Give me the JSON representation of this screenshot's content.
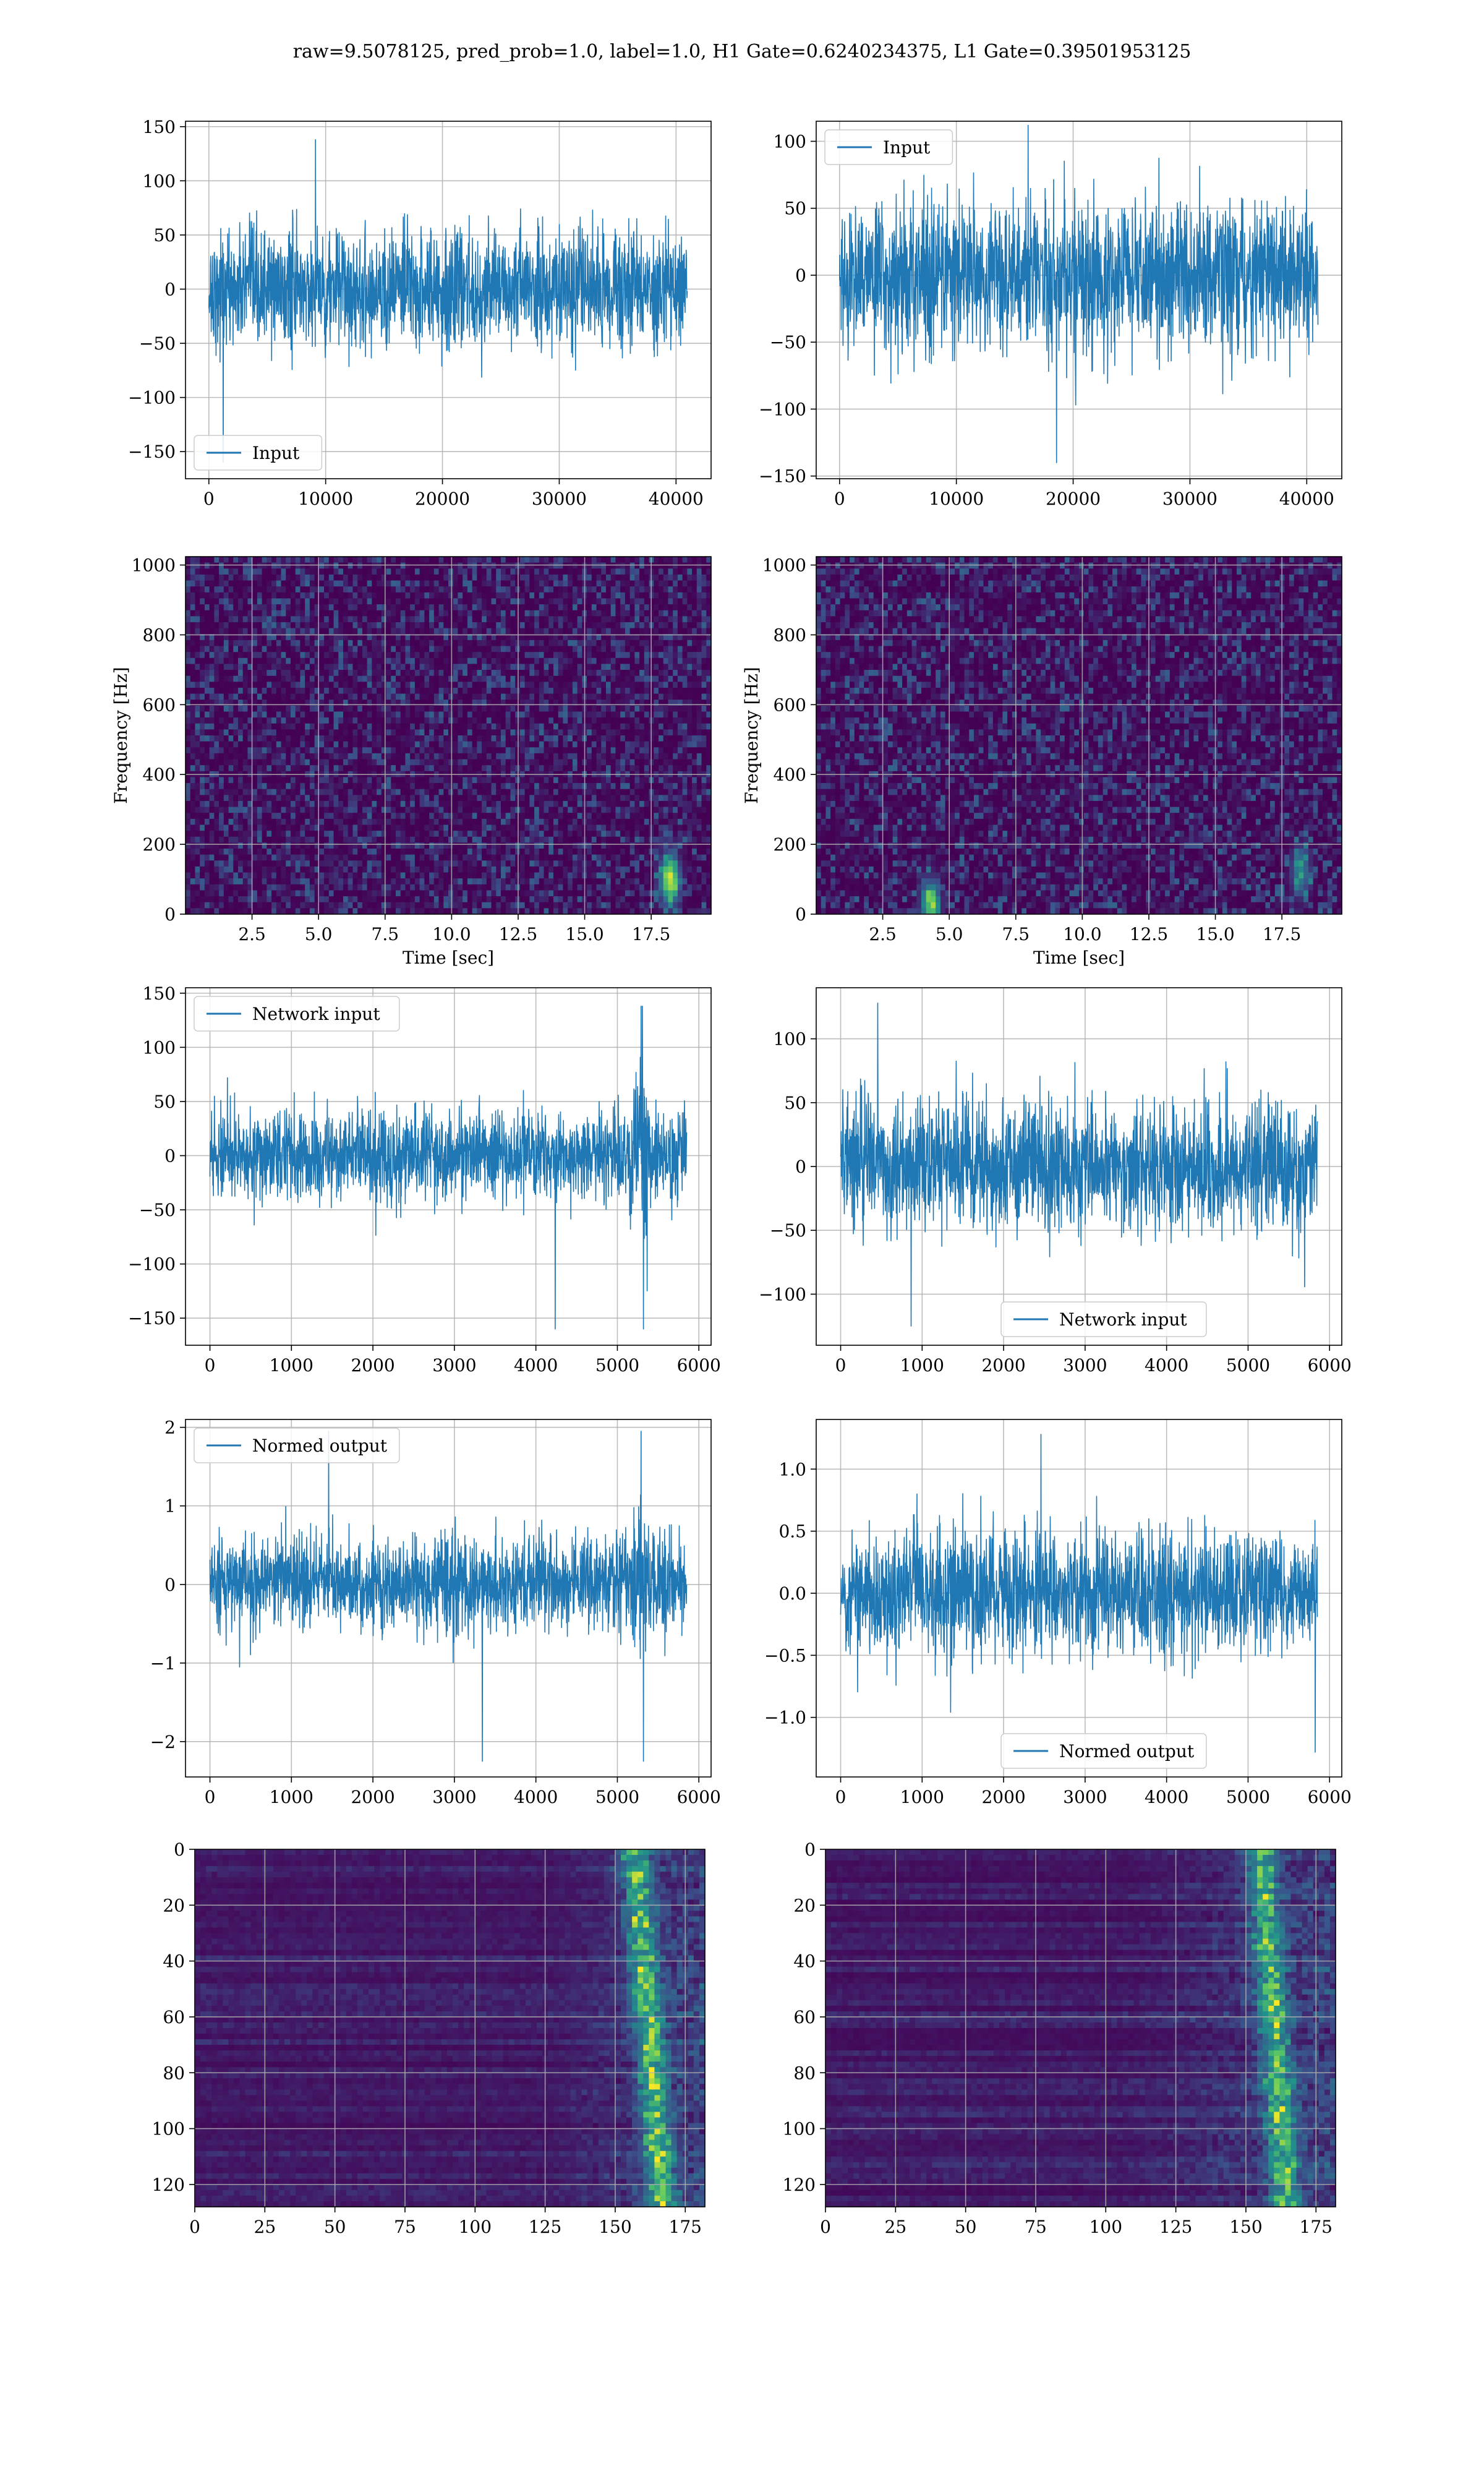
{
  "figure": {
    "suptitle": "raw=9.5078125, pred_prob=1.0, label=1.0, H1 Gate=0.6240234375, L1 Gate=0.39501953125"
  },
  "colors": {
    "line": "#1f77b4",
    "grid": "#b0b0b0",
    "viridis_low": "#440154",
    "viridis_mid": "#21918c",
    "viridis_high": "#fde725"
  },
  "chart_data": [
    {
      "id": "ts-input-left",
      "type": "line",
      "xlim": [
        -2000,
        43000
      ],
      "ylim": [
        -175,
        155
      ],
      "xticks": [
        0,
        10000,
        20000,
        30000,
        40000
      ],
      "yticks": [
        -150,
        -100,
        -50,
        0,
        50,
        100,
        150
      ],
      "series": [
        {
          "name": "Input",
          "x_range": [
            0,
            40960
          ],
          "amplitude_typical": 60,
          "min": -160,
          "max": 138
        }
      ],
      "legend": "lower-left",
      "grid": true,
      "xlabel": "",
      "ylabel": ""
    },
    {
      "id": "ts-input-right",
      "type": "line",
      "xlim": [
        -2000,
        43000
      ],
      "ylim": [
        -152,
        115
      ],
      "xticks": [
        0,
        10000,
        20000,
        30000,
        40000
      ],
      "yticks": [
        -150,
        -100,
        -50,
        0,
        50,
        100
      ],
      "series": [
        {
          "name": "Input",
          "x_range": [
            0,
            40960
          ],
          "amplitude_typical": 60,
          "min": -140,
          "max": 112
        }
      ],
      "legend": "upper-left",
      "grid": true,
      "xlabel": "",
      "ylabel": ""
    },
    {
      "id": "spec-left",
      "type": "heatmap",
      "xlim": [
        0,
        19.75
      ],
      "ylim": [
        0,
        1024
      ],
      "xticks": [
        2.5,
        5.0,
        7.5,
        10.0,
        12.5,
        15.0,
        17.5
      ],
      "yticks": [
        0,
        200,
        400,
        600,
        800,
        1000
      ],
      "xlabel": "Time [sec]",
      "ylabel": "Frequency [Hz]",
      "grid": true,
      "hotspots": [
        {
          "t": 18.2,
          "f": 100,
          "level": 0.9
        }
      ]
    },
    {
      "id": "spec-right",
      "type": "heatmap",
      "xlim": [
        0,
        19.75
      ],
      "ylim": [
        0,
        1024
      ],
      "xticks": [
        2.5,
        5.0,
        7.5,
        10.0,
        12.5,
        15.0,
        17.5
      ],
      "yticks": [
        0,
        200,
        400,
        600,
        800,
        1000
      ],
      "xlabel": "Time [sec]",
      "ylabel": "Frequency [Hz]",
      "grid": true,
      "hotspots": [
        {
          "t": 4.3,
          "f": 25,
          "level": 0.7
        },
        {
          "t": 18.2,
          "f": 120,
          "level": 0.45
        }
      ]
    },
    {
      "id": "ts-network-left",
      "type": "line",
      "xlim": [
        -300,
        6150
      ],
      "ylim": [
        -175,
        155
      ],
      "xticks": [
        0,
        1000,
        2000,
        3000,
        4000,
        5000,
        6000
      ],
      "yticks": [
        -150,
        -100,
        -50,
        0,
        50,
        100,
        150
      ],
      "series": [
        {
          "name": "Network input",
          "x_range": [
            0,
            5850
          ],
          "amplitude_typical": 45,
          "min": -160,
          "max": 138
        }
      ],
      "legend": "upper-left",
      "grid": true,
      "xlabel": "",
      "ylabel": ""
    },
    {
      "id": "ts-network-right",
      "type": "line",
      "xlim": [
        -300,
        6150
      ],
      "ylim": [
        -140,
        140
      ],
      "xticks": [
        0,
        1000,
        2000,
        3000,
        4000,
        5000,
        6000
      ],
      "yticks": [
        -100,
        -50,
        0,
        50,
        100
      ],
      "series": [
        {
          "name": "Network input",
          "x_range": [
            0,
            5850
          ],
          "amplitude_typical": 55,
          "min": -125,
          "max": 128
        }
      ],
      "legend": "lower-center",
      "grid": true,
      "xlabel": "",
      "ylabel": ""
    },
    {
      "id": "ts-normed-left",
      "type": "line",
      "xlim": [
        -300,
        6150
      ],
      "ylim": [
        -2.45,
        2.1
      ],
      "xticks": [
        0,
        1000,
        2000,
        3000,
        4000,
        5000,
        6000
      ],
      "yticks": [
        -2,
        -1,
        0,
        1,
        2
      ],
      "series": [
        {
          "name": "Normed output",
          "x_range": [
            0,
            5850
          ],
          "amplitude_typical": 0.65,
          "min": -2.25,
          "max": 1.95
        }
      ],
      "legend": "upper-left",
      "grid": true,
      "xlabel": "",
      "ylabel": ""
    },
    {
      "id": "ts-normed-right",
      "type": "line",
      "xlim": [
        -300,
        6150
      ],
      "ylim": [
        -1.48,
        1.4
      ],
      "xticks": [
        0,
        1000,
        2000,
        3000,
        4000,
        5000,
        6000
      ],
      "yticks": [
        -1.0,
        -0.5,
        0.0,
        0.5,
        1.0
      ],
      "series": [
        {
          "name": "Normed output",
          "x_range": [
            0,
            5850
          ],
          "amplitude_typical": 0.55,
          "min": -1.28,
          "max": 1.28
        }
      ],
      "legend": "lower-center",
      "grid": true,
      "xlabel": "",
      "ylabel": ""
    },
    {
      "id": "feat-left",
      "type": "heatmap",
      "xlim": [
        0,
        182
      ],
      "ylim": [
        128,
        0
      ],
      "xticks": [
        0,
        25,
        50,
        75,
        100,
        125,
        150,
        175
      ],
      "yticks": [
        0,
        20,
        40,
        60,
        80,
        100,
        120
      ],
      "xlabel": "",
      "ylabel": "",
      "grid": true,
      "active_band": {
        "start": 125,
        "peak": 162,
        "end": 182
      }
    },
    {
      "id": "feat-right",
      "type": "heatmap",
      "xlim": [
        0,
        182
      ],
      "ylim": [
        128,
        0
      ],
      "xticks": [
        0,
        25,
        50,
        75,
        100,
        125,
        150,
        175
      ],
      "yticks": [
        0,
        20,
        40,
        60,
        80,
        100,
        120
      ],
      "xlabel": "",
      "ylabel": "",
      "grid": true,
      "active_band": {
        "start": 110,
        "peak": 160,
        "end": 182
      }
    }
  ]
}
